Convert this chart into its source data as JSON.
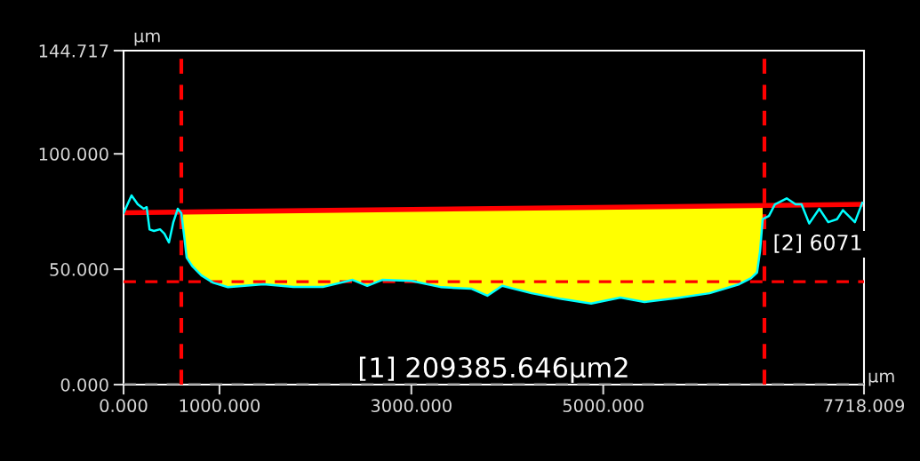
{
  "chart_data": {
    "type": "line",
    "ylabel": "μm",
    "xlabel": "μm",
    "xlim": [
      0,
      7718.009
    ],
    "ylim": [
      0,
      144.717
    ],
    "xticks": [
      {
        "value": 0,
        "label": "0.000"
      },
      {
        "value": 1000,
        "label": "1000.000"
      },
      {
        "value": 3000,
        "label": "3000.000"
      },
      {
        "value": 5000,
        "label": "5000.000"
      },
      {
        "value": 7718.009,
        "label": "7718.009"
      }
    ],
    "yticks": [
      {
        "value": 0,
        "label": "0.000"
      },
      {
        "value": 50,
        "label": "50.000"
      },
      {
        "value": 100,
        "label": "100.000"
      },
      {
        "value": 144.717,
        "label": "144.717"
      }
    ],
    "series": [
      {
        "color": "#ff0000",
        "x": [
          0,
          7718.009
        ],
        "values": [
          74.5,
          78.1
        ]
      },
      {
        "color": "#00ffff",
        "x": [
          0,
          83,
          148,
          210,
          241,
          271,
          317,
          380,
          426,
          473,
          519,
          565,
          602,
          633,
          658,
          719,
          812,
          936,
          1090,
          1461,
          1770,
          2077,
          2388,
          2540,
          2696,
          3002,
          3314,
          3623,
          3792,
          3947,
          4253,
          4565,
          4874,
          5179,
          5430,
          5800,
          6108,
          6418,
          6541,
          6603,
          6634,
          6662,
          6727,
          6789,
          6912,
          7005,
          7067,
          7147,
          7252,
          7345,
          7437,
          7498,
          7623,
          7700
        ],
        "values": [
          74.3,
          82.0,
          78.1,
          76.2,
          76.9,
          67.2,
          66.6,
          67.3,
          65.4,
          61.6,
          70.4,
          76.2,
          74.3,
          64.0,
          55.0,
          51.2,
          47.3,
          44.1,
          42.2,
          43.5,
          42.3,
          42.3,
          45.4,
          42.8,
          45.4,
          44.9,
          42.2,
          41.6,
          38.5,
          42.8,
          39.6,
          37.1,
          35.1,
          37.7,
          35.8,
          37.7,
          39.6,
          43.5,
          46.1,
          48.6,
          57.7,
          71.7,
          73.1,
          78.1,
          80.7,
          78.1,
          78.1,
          69.8,
          76.2,
          70.4,
          71.7,
          75.6,
          70.4,
          78.8
        ],
        "lower": [
          null,
          null,
          null,
          null,
          null,
          null,
          null,
          null,
          null,
          null,
          null,
          null,
          74.3,
          64.0,
          55.0,
          51.2,
          47.3,
          44.1,
          42.2,
          43.5,
          42.3,
          42.3,
          45.4,
          42.8,
          45.4,
          44.9,
          42.2,
          41.6,
          38.5,
          42.8,
          39.6,
          37.1,
          35.1,
          37.7,
          35.8,
          37.7,
          39.6,
          43.5,
          46.1,
          48.6,
          57.7,
          71.7,
          null,
          null,
          null,
          null,
          null,
          null,
          null,
          null,
          null,
          null,
          null,
          null
        ],
        "upper": [
          null,
          null,
          null,
          null,
          null,
          null,
          null,
          null,
          null,
          null,
          null,
          null,
          74.8,
          74.8,
          74.8,
          74.8,
          74.9,
          74.9,
          75.0,
          75.2,
          75.3,
          75.5,
          75.6,
          75.7,
          75.8,
          75.9,
          76.0,
          76.2,
          76.3,
          76.3,
          76.5,
          76.6,
          76.8,
          76.9,
          77.0,
          77.2,
          77.3,
          77.5,
          77.5,
          77.6,
          77.6,
          77.6,
          null,
          null,
          null,
          null,
          null,
          null,
          null,
          null,
          null,
          null,
          null,
          null
        ]
      }
    ],
    "ref_lines": [
      {
        "axis": "x",
        "value": 602,
        "color": "#ff0000",
        "line_style": "dashed"
      },
      {
        "axis": "x",
        "value": 6680,
        "color": "#ff0000",
        "line_style": "dashed"
      },
      {
        "axis": "y",
        "value": 44.6,
        "color": "#ff0000",
        "line_style": "dashed"
      },
      {
        "axis": "y",
        "value": 0,
        "color": "#808080",
        "line_style": "dashed"
      }
    ],
    "annotations": [
      "[1] 209385.646μm2",
      "[2] 6071"
    ]
  }
}
